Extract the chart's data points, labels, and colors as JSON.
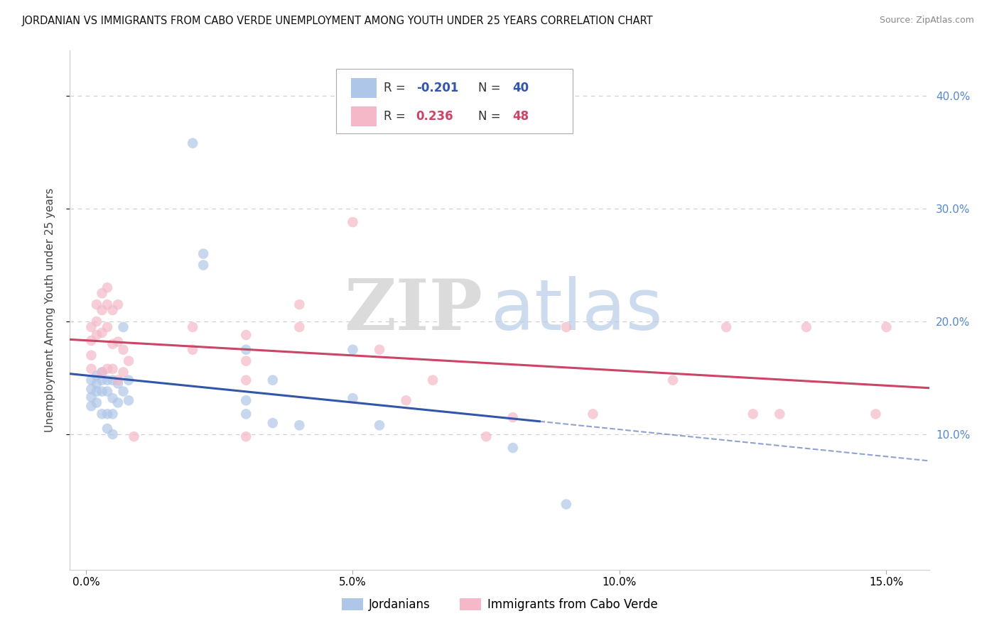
{
  "title": "JORDANIAN VS IMMIGRANTS FROM CABO VERDE UNEMPLOYMENT AMONG YOUTH UNDER 25 YEARS CORRELATION CHART",
  "source": "Source: ZipAtlas.com",
  "ylabel": "Unemployment Among Youth under 25 years",
  "xlabel_ticks": [
    "0.0%",
    "5.0%",
    "10.0%",
    "15.0%"
  ],
  "xlabel_vals": [
    0.0,
    0.05,
    0.1,
    0.15
  ],
  "ylabel_ticks": [
    "10.0%",
    "20.0%",
    "30.0%",
    "40.0%"
  ],
  "ylabel_vals": [
    0.1,
    0.2,
    0.3,
    0.4
  ],
  "xlim": [
    -0.003,
    0.158
  ],
  "ylim": [
    -0.02,
    0.44
  ],
  "legend_blue_label": "Jordanians",
  "legend_pink_label": "Immigrants from Cabo Verde",
  "R_blue": -0.201,
  "N_blue": 40,
  "R_pink": 0.236,
  "N_pink": 48,
  "blue_scatter": [
    [
      0.001,
      0.148
    ],
    [
      0.001,
      0.14
    ],
    [
      0.001,
      0.133
    ],
    [
      0.001,
      0.125
    ],
    [
      0.002,
      0.152
    ],
    [
      0.002,
      0.145
    ],
    [
      0.002,
      0.138
    ],
    [
      0.002,
      0.128
    ],
    [
      0.003,
      0.155
    ],
    [
      0.003,
      0.148
    ],
    [
      0.003,
      0.138
    ],
    [
      0.003,
      0.118
    ],
    [
      0.004,
      0.148
    ],
    [
      0.004,
      0.138
    ],
    [
      0.004,
      0.118
    ],
    [
      0.004,
      0.105
    ],
    [
      0.005,
      0.148
    ],
    [
      0.005,
      0.132
    ],
    [
      0.005,
      0.118
    ],
    [
      0.005,
      0.1
    ],
    [
      0.006,
      0.145
    ],
    [
      0.006,
      0.128
    ],
    [
      0.007,
      0.195
    ],
    [
      0.007,
      0.138
    ],
    [
      0.008,
      0.148
    ],
    [
      0.008,
      0.13
    ],
    [
      0.02,
      0.358
    ],
    [
      0.022,
      0.26
    ],
    [
      0.022,
      0.25
    ],
    [
      0.03,
      0.175
    ],
    [
      0.03,
      0.13
    ],
    [
      0.03,
      0.118
    ],
    [
      0.035,
      0.148
    ],
    [
      0.035,
      0.11
    ],
    [
      0.04,
      0.108
    ],
    [
      0.05,
      0.175
    ],
    [
      0.05,
      0.132
    ],
    [
      0.055,
      0.108
    ],
    [
      0.08,
      0.088
    ],
    [
      0.09,
      0.038
    ]
  ],
  "pink_scatter": [
    [
      0.001,
      0.195
    ],
    [
      0.001,
      0.183
    ],
    [
      0.001,
      0.17
    ],
    [
      0.001,
      0.158
    ],
    [
      0.002,
      0.215
    ],
    [
      0.002,
      0.2
    ],
    [
      0.002,
      0.188
    ],
    [
      0.003,
      0.225
    ],
    [
      0.003,
      0.21
    ],
    [
      0.003,
      0.19
    ],
    [
      0.003,
      0.155
    ],
    [
      0.004,
      0.23
    ],
    [
      0.004,
      0.215
    ],
    [
      0.004,
      0.195
    ],
    [
      0.004,
      0.158
    ],
    [
      0.005,
      0.21
    ],
    [
      0.005,
      0.18
    ],
    [
      0.005,
      0.158
    ],
    [
      0.006,
      0.215
    ],
    [
      0.006,
      0.182
    ],
    [
      0.006,
      0.148
    ],
    [
      0.007,
      0.175
    ],
    [
      0.007,
      0.155
    ],
    [
      0.008,
      0.165
    ],
    [
      0.009,
      0.098
    ],
    [
      0.02,
      0.195
    ],
    [
      0.02,
      0.175
    ],
    [
      0.03,
      0.188
    ],
    [
      0.03,
      0.165
    ],
    [
      0.03,
      0.148
    ],
    [
      0.03,
      0.098
    ],
    [
      0.04,
      0.215
    ],
    [
      0.04,
      0.195
    ],
    [
      0.05,
      0.288
    ],
    [
      0.055,
      0.175
    ],
    [
      0.06,
      0.13
    ],
    [
      0.065,
      0.148
    ],
    [
      0.075,
      0.098
    ],
    [
      0.08,
      0.115
    ],
    [
      0.09,
      0.195
    ],
    [
      0.095,
      0.118
    ],
    [
      0.11,
      0.148
    ],
    [
      0.12,
      0.195
    ],
    [
      0.125,
      0.118
    ],
    [
      0.13,
      0.118
    ],
    [
      0.135,
      0.195
    ],
    [
      0.148,
      0.118
    ],
    [
      0.15,
      0.195
    ]
  ],
  "watermark_zip": "ZIP",
  "watermark_atlas": "atlas",
  "background_color": "#ffffff",
  "grid_color": "#cccccc",
  "blue_color": "#aec6e8",
  "pink_color": "#f4b8c8",
  "blue_line_color": "#3355aa",
  "pink_line_color": "#cc4466",
  "blue_text_color": "#3355aa",
  "pink_text_color": "#cc4466",
  "right_tick_color": "#5588cc"
}
